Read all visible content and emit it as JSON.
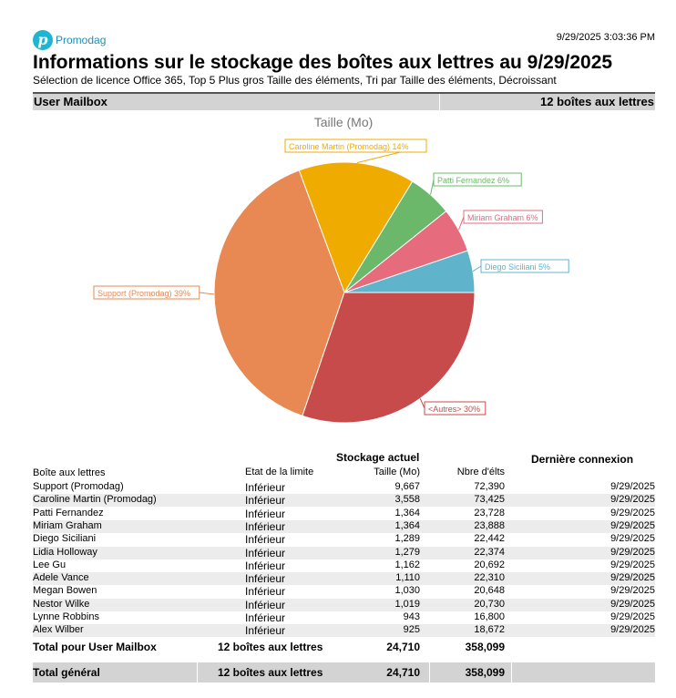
{
  "header": {
    "logo_text": "Promodag",
    "logo_glyph": "p",
    "timestamp": "9/29/2025 3:03:36 PM",
    "title": "Informations sur le stockage des boîtes aux lettres au 9/29/2025",
    "subtitle": "Sélection de licence Office 365, Top 5 Plus gros Taille des éléments, Tri par Taille des éléments, Décroissant"
  },
  "group": {
    "name": "User Mailbox",
    "count": "12 boîtes aux lettres"
  },
  "chart_data": {
    "type": "pie",
    "title": "Taille (Mo)",
    "slices": [
      {
        "label": "Diego Siciliani 5%",
        "value": 1289,
        "color": "#5fb4cc"
      },
      {
        "label": "Miriam Graham 6%",
        "value": 1364,
        "color": "#e56b7d"
      },
      {
        "label": "Patti Fernandez 6%",
        "value": 1364,
        "color": "#6bb86b"
      },
      {
        "label": "Caroline Martin (Promodag) 14%",
        "value": 3558,
        "color": "#f0ab00"
      },
      {
        "label": "Support (Promodag) 39%",
        "value": 9667,
        "color": "#e88852"
      },
      {
        "label": "<Autres> 30%",
        "value": 7468,
        "color": "#c84b4b"
      }
    ],
    "direction": "counterclockwise",
    "start": "3 o'clock"
  },
  "table": {
    "group_header": "Stockage actuel",
    "last_login_header": "Dernière connexion",
    "columns": [
      "Boîte aux lettres",
      "Etat de la limite",
      "Taille (Mo)",
      "Nbre d'élts"
    ],
    "rows": [
      [
        "Support (Promodag)",
        "Inférieur",
        "9,667",
        "72,390",
        "9/29/2025"
      ],
      [
        "Caroline Martin (Promodag)",
        "Inférieur",
        "3,558",
        "73,425",
        "9/29/2025"
      ],
      [
        "Patti Fernandez",
        "Inférieur",
        "1,364",
        "23,728",
        "9/29/2025"
      ],
      [
        "Miriam Graham",
        "Inférieur",
        "1,364",
        "23,888",
        "9/29/2025"
      ],
      [
        "Diego Siciliani",
        "Inférieur",
        "1,289",
        "22,442",
        "9/29/2025"
      ],
      [
        "Lidia Holloway",
        "Inférieur",
        "1,279",
        "22,374",
        "9/29/2025"
      ],
      [
        "Lee Gu",
        "Inférieur",
        "1,162",
        "20,692",
        "9/29/2025"
      ],
      [
        "Adele Vance",
        "Inférieur",
        "1,110",
        "22,310",
        "9/29/2025"
      ],
      [
        "Megan Bowen",
        "Inférieur",
        "1,030",
        "20,648",
        "9/29/2025"
      ],
      [
        "Nestor Wilke",
        "Inférieur",
        "1,019",
        "20,730",
        "9/29/2025"
      ],
      [
        "Lynne Robbins",
        "Inférieur",
        "943",
        "16,800",
        "9/29/2025"
      ],
      [
        "Alex Wilber",
        "Inférieur",
        "925",
        "18,672",
        "9/29/2025"
      ]
    ],
    "subtotal": {
      "label": "Total pour User Mailbox",
      "count": "12 boîtes aux lettres",
      "size": "24,710",
      "items": "358,099"
    },
    "total": {
      "label": "Total général",
      "count": "12 boîtes aux lettres",
      "size": "24,710",
      "items": "358,099"
    }
  }
}
